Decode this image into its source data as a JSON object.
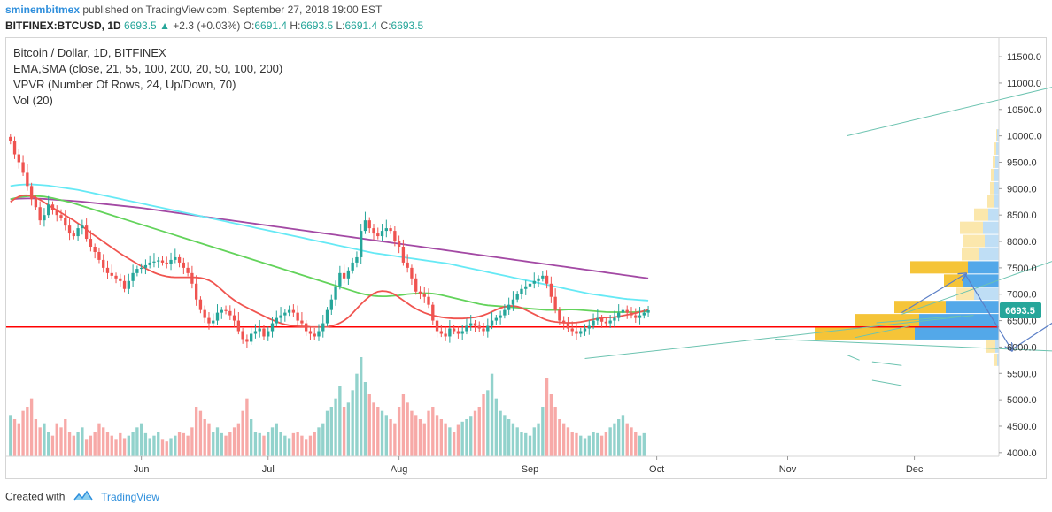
{
  "header": {
    "author": "sminembitmex",
    "published_text": "published on TradingView.com, September 27, 2018 19:00 EST",
    "symbol": "BITFINEX:BTCUSD, 1D",
    "last": "6693.5",
    "change_arrow": "▲",
    "change": "+2.3 (+0.03%)",
    "o_label": "O:",
    "o_value": "6691.4",
    "h_label": "H:",
    "h_value": "6693.5",
    "l_label": "L:",
    "l_value": "6691.4",
    "c_label": "C:",
    "c_value": "6693.5"
  },
  "legend": {
    "title": "Bitcoin / Dollar, 1D, BITFINEX",
    "ma": "EMA,SMA (close, 21, 55, 100, 200, 20, 50, 100, 200)",
    "vpvr": "VPVR (Number Of Rows, 24, Up/Down, 70)",
    "vol": "Vol (20)"
  },
  "footer": {
    "created_with": "Created with",
    "brand": "TradingView"
  },
  "colors": {
    "up": "#26a69a",
    "down": "#ef5350",
    "ema21": "#f0544f",
    "ema55": "#63d35b",
    "ema100": "#66e9f5",
    "ema200": "#a349a4",
    "support_line": "#ff0000",
    "price_label": "#26a69a",
    "projection": "#5b7fc7",
    "trend": "#6cc3b0"
  },
  "chart_data": {
    "type": "candlestick",
    "title": "Bitcoin / Dollar, 1D, BITFINEX",
    "y_ticks": [
      "11500.0",
      "11000.0",
      "10500.0",
      "10000.0",
      "9500.0",
      "9000.0",
      "8500.0",
      "8000.0",
      "7500.0",
      "7000.0",
      "6500.0",
      "6000.0",
      "5500.0",
      "5000.0",
      "4500.0",
      "4000.0"
    ],
    "y_tick_values": [
      11500,
      11000,
      10500,
      10000,
      9500,
      9000,
      8500,
      8000,
      7500,
      7000,
      6500,
      6000,
      5500,
      5000,
      4500,
      4000
    ],
    "ylim": [
      3930,
      11870
    ],
    "x_ticks": [
      "Jun",
      "Jul",
      "Aug",
      "Sep",
      "Oct",
      "Nov",
      "Dec"
    ],
    "x_tick_days": [
      31,
      61,
      92,
      123,
      153,
      184,
      214
    ],
    "xlim": [
      -1,
      234
    ],
    "last_price_label": "6693.5",
    "last_price": 6693.5,
    "support_level": 6380,
    "resistance_level": 6720,
    "candles_start": "2018-05-01",
    "closes": [
      9900,
      9650,
      9500,
      9300,
      9050,
      8800,
      8650,
      8400,
      8500,
      8700,
      8600,
      8500,
      8450,
      8300,
      8150,
      8100,
      8250,
      8300,
      8050,
      7900,
      7800,
      7650,
      7500,
      7400,
      7350,
      7300,
      7250,
      7100,
      7250,
      7400,
      7480,
      7500,
      7550,
      7600,
      7620,
      7640,
      7600,
      7580,
      7650,
      7700,
      7600,
      7500,
      7400,
      7200,
      6900,
      6700,
      6550,
      6450,
      6500,
      6650,
      6700,
      6680,
      6600,
      6500,
      6300,
      6150,
      6100,
      6250,
      6300,
      6350,
      6200,
      6300,
      6450,
      6550,
      6600,
      6650,
      6700,
      6650,
      6500,
      6450,
      6300,
      6250,
      6200,
      6300,
      6450,
      6700,
      6900,
      7150,
      7400,
      7300,
      7450,
      7600,
      7700,
      8200,
      8400,
      8250,
      8150,
      8100,
      8200,
      8250,
      8200,
      8000,
      7900,
      7600,
      7500,
      7300,
      7050,
      7000,
      6950,
      6800,
      6500,
      6300,
      6250,
      6200,
      6350,
      6300,
      6250,
      6300,
      6400,
      6450,
      6400,
      6350,
      6300,
      6400,
      6500,
      6550,
      6600,
      6700,
      6800,
      6900,
      7000,
      7100,
      7150,
      7200,
      7250,
      7300,
      7350,
      7200,
      6950,
      6700,
      6500,
      6450,
      6350,
      6300,
      6250,
      6300,
      6350,
      6400,
      6500,
      6550,
      6480,
      6450,
      6500,
      6550,
      6650,
      6700,
      6650,
      6600,
      6550,
      6600,
      6650,
      6693.5
    ],
    "ema21": [
      8750,
      8820,
      8870,
      8880,
      8860,
      8820,
      8770,
      8700,
      8640,
      8580,
      8520,
      8460,
      8400,
      8330,
      8260,
      8180,
      8110,
      8040,
      7970,
      7900,
      7830,
      7760,
      7700,
      7640,
      7580,
      7520,
      7470,
      7420,
      7380,
      7350,
      7330,
      7320,
      7320,
      7320,
      7320,
      7320,
      7310,
      7290,
      7250,
      7180,
      7090,
      7000,
      6920,
      6850,
      6790,
      6740,
      6690,
      6640,
      6590,
      6540,
      6500,
      6460,
      6430,
      6410,
      6400,
      6390,
      6390,
      6380,
      6380,
      6380,
      6380,
      6400,
      6430,
      6480,
      6550,
      6650,
      6760,
      6860,
      6950,
      7020,
      7060,
      7060,
      7040,
      6990,
      6920,
      6850,
      6780,
      6720,
      6670,
      6630,
      6600,
      6580,
      6560,
      6550,
      6540,
      6540,
      6540,
      6550,
      6560,
      6580,
      6610,
      6650,
      6700,
      6740,
      6770,
      6780,
      6770,
      6740,
      6690,
      6640,
      6590,
      6540,
      6500,
      6480,
      6470,
      6460,
      6460,
      6460,
      6470,
      6490,
      6510,
      6530,
      6550,
      6560,
      6560,
      6570,
      6590,
      6610,
      6630,
      6650,
      6680,
      6700
    ],
    "ema55": [
      8800,
      8830,
      8850,
      8860,
      8860,
      8850,
      8830,
      8800,
      8770,
      8740,
      8700,
      8660,
      8620,
      8580,
      8540,
      8500,
      8460,
      8420,
      8380,
      8340,
      8300,
      8260,
      8220,
      8180,
      8140,
      8100,
      8060,
      8020,
      7980,
      7940,
      7900,
      7860,
      7820,
      7780,
      7740,
      7700,
      7660,
      7620,
      7580,
      7540,
      7500,
      7460,
      7420,
      7380,
      7340,
      7300,
      7260,
      7220,
      7180,
      7140,
      7100,
      7060,
      7020,
      6990,
      6970,
      6960,
      6960,
      6970,
      6980,
      7000,
      7010,
      7020,
      7020,
      7010,
      6990,
      6960,
      6930,
      6900,
      6870,
      6840,
      6810,
      6790,
      6780,
      6770,
      6760,
      6750,
      6740,
      6730,
      6720,
      6710,
      6700,
      6700,
      6700,
      6710,
      6710,
      6700,
      6690,
      6680,
      6670,
      6660,
      6660,
      6660,
      6660,
      6660,
      6670,
      6680
    ],
    "ema100": [
      9050,
      9070,
      9080,
      9080,
      9070,
      9060,
      9040,
      9020,
      9000,
      8980,
      8950,
      8920,
      8890,
      8860,
      8830,
      8800,
      8770,
      8740,
      8710,
      8680,
      8650,
      8620,
      8590,
      8560,
      8530,
      8500,
      8470,
      8440,
      8410,
      8380,
      8350,
      8320,
      8290,
      8260,
      8230,
      8200,
      8170,
      8140,
      8110,
      8080,
      8050,
      8020,
      7990,
      7960,
      7930,
      7900,
      7870,
      7840,
      7810,
      7780,
      7760,
      7740,
      7720,
      7700,
      7680,
      7660,
      7640,
      7620,
      7600,
      7580,
      7550,
      7520,
      7490,
      7460,
      7430,
      7400,
      7370,
      7340,
      7310,
      7280,
      7250,
      7220,
      7190,
      7160,
      7130,
      7100,
      7070,
      7040,
      7010,
      6990,
      6970,
      6950,
      6930,
      6910,
      6900,
      6890,
      6880
    ],
    "ema200": [
      8800,
      8810,
      8815,
      8815,
      8810,
      8800,
      8790,
      8780,
      8770,
      8760,
      8745,
      8730,
      8715,
      8700,
      8685,
      8670,
      8655,
      8640,
      8620,
      8600,
      8580,
      8560,
      8540,
      8520,
      8500,
      8480,
      8460,
      8440,
      8420,
      8400,
      8380,
      8360,
      8340,
      8320,
      8300,
      8280,
      8260,
      8240,
      8220,
      8200,
      8180,
      8160,
      8140,
      8120,
      8100,
      8080,
      8060,
      8040,
      8020,
      8000,
      7980,
      7960,
      7940,
      7920,
      7900,
      7880,
      7860,
      7840,
      7820,
      7800,
      7780,
      7760,
      7740,
      7720,
      7700,
      7680,
      7660,
      7640,
      7620,
      7600,
      7580,
      7560,
      7540,
      7520,
      7500,
      7480,
      7460,
      7440,
      7420,
      7400,
      7380,
      7360,
      7340,
      7320,
      7300
    ],
    "volumes": [
      50,
      45,
      40,
      55,
      60,
      70,
      45,
      35,
      40,
      30,
      25,
      40,
      35,
      45,
      30,
      25,
      30,
      35,
      20,
      25,
      30,
      40,
      35,
      30,
      25,
      20,
      28,
      22,
      25,
      30,
      35,
      40,
      28,
      22,
      25,
      30,
      20,
      18,
      22,
      25,
      30,
      28,
      25,
      35,
      60,
      55,
      45,
      40,
      30,
      35,
      28,
      25,
      30,
      35,
      40,
      55,
      70,
      45,
      30,
      28,
      25,
      30,
      35,
      40,
      30,
      25,
      22,
      28,
      30,
      25,
      20,
      25,
      30,
      35,
      40,
      55,
      60,
      70,
      85,
      60,
      65,
      80,
      100,
      120,
      90,
      75,
      65,
      60,
      55,
      50,
      45,
      40,
      60,
      75,
      65,
      55,
      50,
      45,
      40,
      55,
      60,
      50,
      45,
      40,
      35,
      30,
      38,
      42,
      45,
      48,
      55,
      60,
      75,
      80,
      100,
      70,
      55,
      50,
      45,
      40,
      35,
      30,
      28,
      25,
      35,
      40,
      60,
      95,
      75,
      60,
      45,
      40,
      35,
      30,
      28,
      25,
      22,
      25,
      30,
      28,
      25,
      30,
      35,
      40,
      45,
      50,
      40,
      35,
      30,
      25,
      28
    ],
    "vpvr_rows": [
      {
        "price": 10000,
        "up": 2,
        "down": 1
      },
      {
        "price": 9750,
        "up": 3,
        "down": 2
      },
      {
        "price": 9500,
        "up": 4,
        "down": 3
      },
      {
        "price": 9250,
        "up": 5,
        "down": 4
      },
      {
        "price": 9000,
        "up": 5,
        "down": 5
      },
      {
        "price": 8750,
        "up": 6,
        "down": 7
      },
      {
        "price": 8500,
        "up": 12,
        "down": 16
      },
      {
        "price": 8250,
        "up": 18,
        "down": 26
      },
      {
        "price": 8000,
        "up": 16,
        "down": 24
      },
      {
        "price": 7750,
        "up": 22,
        "down": 20
      },
      {
        "price": 7500,
        "up": 35,
        "down": 65
      },
      {
        "price": 7250,
        "up": 40,
        "down": 22
      },
      {
        "price": 7000,
        "up": 28,
        "down": 20
      },
      {
        "price": 6750,
        "up": 60,
        "down": 58
      },
      {
        "price": 6500,
        "up": 90,
        "down": 72
      },
      {
        "price": 6250,
        "up": 95,
        "down": 113
      },
      {
        "price": 6000,
        "up": 4,
        "down": 10
      },
      {
        "price": 5750,
        "up": 2,
        "down": 3
      }
    ],
    "projection_path": [
      [
        211,
        6650
      ],
      [
        226,
        7380
      ],
      [
        237,
        5950
      ],
      [
        259,
        7100
      ],
      [
        272,
        5800
      ],
      [
        279,
        6300
      ],
      [
        289,
        4900
      ],
      [
        302,
        5920
      ],
      [
        313,
        4150
      ]
    ],
    "channel_upper": [
      [
        211,
        6620
      ],
      [
        260,
        8000
      ]
    ],
    "channel_top_line": [
      [
        198,
        10000
      ],
      [
        256,
        11100
      ]
    ],
    "channel_lower": [
      [
        136,
        5780
      ],
      [
        228,
        6600
      ]
    ],
    "descending_line": [
      [
        181,
        6150
      ],
      [
        292,
        5770
      ]
    ],
    "small_lines": [
      [
        [
          198,
          5850
        ],
        [
          201,
          5750
        ]
      ],
      [
        [
          204,
          5720
        ],
        [
          211,
          5650
        ]
      ],
      [
        [
          204,
          5370
        ],
        [
          211,
          5270
        ]
      ]
    ]
  }
}
